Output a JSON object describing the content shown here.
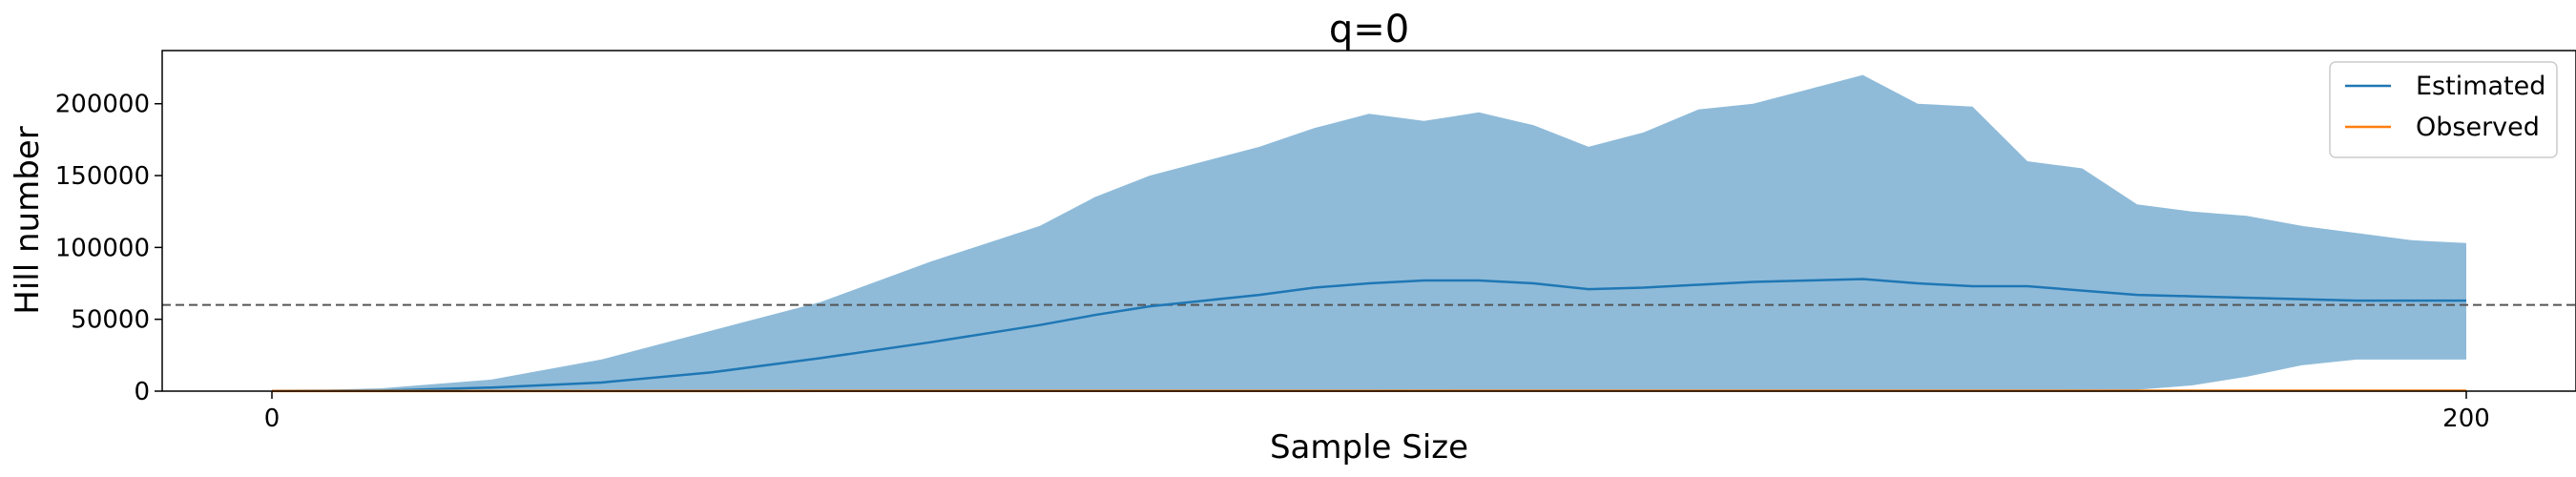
{
  "chart_data": {
    "type": "line",
    "title": "q=0",
    "xlabel": "Sample Size",
    "ylabel": "Hill number",
    "xlim": [
      -10,
      210
    ],
    "ylim": [
      0,
      237000
    ],
    "x_ticks": [
      0,
      200
    ],
    "x_tick_labels": [
      "0",
      "200"
    ],
    "y_ticks": [
      0,
      50000,
      100000,
      150000,
      200000
    ],
    "y_tick_labels": [
      "0",
      "50000",
      "100000",
      "150000",
      "200000"
    ],
    "grid": false,
    "legend": "top-right",
    "reference_line": {
      "y": 60000,
      "style": "dashed",
      "color": "#555555"
    },
    "series": [
      {
        "name": "Estimated",
        "color": "#1f77b4",
        "x": [
          0,
          10,
          20,
          30,
          40,
          50,
          60,
          70,
          75,
          80,
          90,
          95,
          100,
          105,
          110,
          115,
          120,
          125,
          130,
          135,
          140,
          145,
          150,
          155,
          160,
          165,
          170,
          175,
          180,
          185,
          190,
          195,
          200
        ],
        "values": [
          100,
          300,
          2500,
          6000,
          13000,
          23000,
          34000,
          46000,
          53000,
          59000,
          67000,
          72000,
          75000,
          77000,
          77000,
          75000,
          71000,
          72000,
          74000,
          76000,
          77000,
          78000,
          75000,
          73000,
          73000,
          70000,
          67000,
          66000,
          65000,
          64000,
          63000,
          63000,
          63000
        ],
        "band": {
          "upper": [
            0,
            2000,
            8000,
            22000,
            42000,
            62000,
            90000,
            115000,
            135000,
            150000,
            170000,
            183000,
            193000,
            188000,
            194000,
            185000,
            170000,
            180000,
            196000,
            200000,
            210000,
            220000,
            200000,
            198000,
            160000,
            155000,
            130000,
            125000,
            122000,
            115000,
            110000,
            105000,
            103000
          ],
          "lower": [
            0,
            0,
            0,
            0,
            0,
            0,
            0,
            0,
            0,
            0,
            0,
            0,
            0,
            0,
            0,
            0,
            0,
            0,
            0,
            0,
            0,
            0,
            0,
            0,
            0,
            0,
            1000,
            4000,
            10000,
            18000,
            22000,
            22000,
            22000
          ]
        }
      },
      {
        "name": "Observed",
        "color": "#ff7f0e",
        "x": [
          0,
          50,
          100,
          150,
          200
        ],
        "values": [
          50,
          150,
          200,
          250,
          300
        ]
      }
    ]
  }
}
